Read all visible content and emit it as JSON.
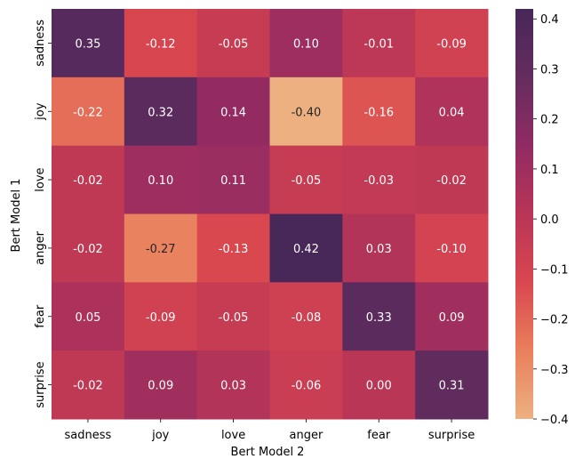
{
  "chart_data": {
    "type": "heatmap",
    "xlabel": "Bert Model 2",
    "ylabel": "Bert Model 1",
    "x_categories": [
      "sadness",
      "joy",
      "love",
      "anger",
      "fear",
      "surprise"
    ],
    "y_categories": [
      "sadness",
      "joy",
      "love",
      "anger",
      "fear",
      "surprise"
    ],
    "values": [
      [
        0.35,
        -0.12,
        -0.05,
        0.1,
        -0.01,
        -0.09
      ],
      [
        -0.22,
        0.32,
        0.14,
        -0.4,
        -0.16,
        0.04
      ],
      [
        -0.02,
        0.1,
        0.11,
        -0.05,
        -0.03,
        -0.02
      ],
      [
        -0.02,
        -0.27,
        -0.13,
        0.42,
        0.03,
        -0.1
      ],
      [
        0.05,
        -0.09,
        -0.05,
        -0.08,
        0.33,
        0.09
      ],
      [
        -0.02,
        0.09,
        0.03,
        -0.06,
        0.0,
        0.31
      ]
    ],
    "cell_labels": [
      [
        "0.35",
        "-0.12",
        "-0.05",
        "0.10",
        "-0.01",
        "-0.09"
      ],
      [
        "-0.22",
        "0.32",
        "0.14",
        "-0.40",
        "-0.16",
        "0.04"
      ],
      [
        "-0.02",
        "0.10",
        "0.11",
        "-0.05",
        "-0.03",
        "-0.02"
      ],
      [
        "-0.02",
        "-0.27",
        "-0.13",
        "0.42",
        "0.03",
        "-0.10"
      ],
      [
        "0.05",
        "-0.09",
        "-0.05",
        "-0.08",
        "0.33",
        "0.09"
      ],
      [
        "-0.02",
        "0.09",
        "0.03",
        "-0.06",
        "0.00",
        "0.31"
      ]
    ],
    "colorbar": {
      "colormap": "flare",
      "vmin": -0.4,
      "vmax": 0.42,
      "ticks": [
        -0.4,
        -0.3,
        -0.2,
        -0.1,
        0.0,
        0.1,
        0.2,
        0.3,
        0.4
      ],
      "tick_labels": [
        "−0.4",
        "−0.3",
        "−0.2",
        "−0.1",
        "0.0",
        "0.1",
        "0.2",
        "0.3",
        "0.4"
      ],
      "colors": [
        "#edb081",
        "#e9805c",
        "#d9474f",
        "#b83557",
        "#912b63",
        "#642d5e",
        "#482759"
      ]
    }
  }
}
